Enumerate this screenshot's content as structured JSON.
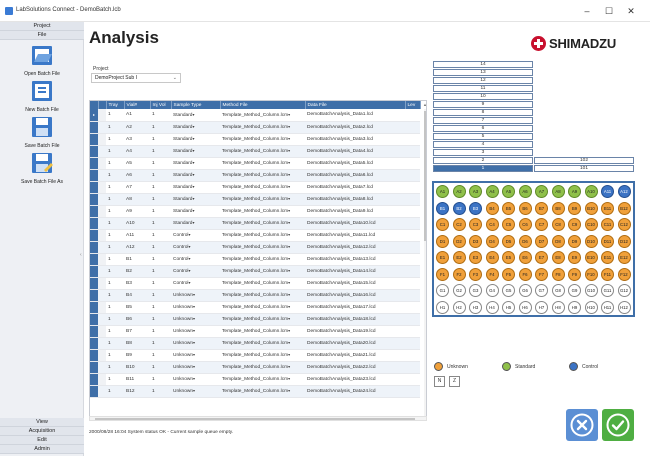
{
  "window": {
    "title": "LabSolutions Connect - DemoBatch.lcb",
    "minimize_glyph": "–",
    "maximize_glyph": "☐",
    "close_glyph": "✕"
  },
  "sidebar": {
    "top_menu": [
      "Project",
      "File"
    ],
    "tools": [
      {
        "label": "Open Batch File",
        "icon": "open-batch-icon"
      },
      {
        "label": "New Batch File",
        "icon": "new-batch-icon"
      },
      {
        "label": "Save Batch File",
        "icon": "save-batch-icon"
      },
      {
        "label": "Save Batch File As",
        "icon": "save-batch-as-icon"
      }
    ],
    "bottom_menu": [
      "View",
      "Acquisition",
      "Edit",
      "Admin"
    ],
    "collapse_glyph": "‹"
  },
  "main": {
    "title": "Analysis",
    "logo_text": "SHIMADZU",
    "project_label": "Project",
    "project_value": "DemoProject Sub I"
  },
  "table": {
    "columns": [
      "Tray",
      "Vial#",
      "Inj Vol",
      "Sample Type",
      "Method File",
      "Data File",
      "Lev"
    ],
    "rows": [
      [
        "1",
        "A1",
        "1",
        "Standard",
        "Template_Method_Column.lcm",
        "DemoBatchAnalysis_Data1.lcd"
      ],
      [
        "1",
        "A2",
        "1",
        "Standard",
        "Template_Method_Column.lcm",
        "DemoBatchAnalysis_Data2.lcd"
      ],
      [
        "1",
        "A3",
        "1",
        "Standard",
        "Template_Method_Column.lcm",
        "DemoBatchAnalysis_Data3.lcd"
      ],
      [
        "1",
        "A4",
        "1",
        "Standard",
        "Template_Method_Column.lcm",
        "DemoBatchAnalysis_Data4.lcd"
      ],
      [
        "1",
        "A5",
        "1",
        "Standard",
        "Template_Method_Column.lcm",
        "DemoBatchAnalysis_Data5.lcd"
      ],
      [
        "1",
        "A6",
        "1",
        "Standard",
        "Template_Method_Column.lcm",
        "DemoBatchAnalysis_Data6.lcd"
      ],
      [
        "1",
        "A7",
        "1",
        "Standard",
        "Template_Method_Column.lcm",
        "DemoBatchAnalysis_Data7.lcd"
      ],
      [
        "1",
        "A8",
        "1",
        "Standard",
        "Template_Method_Column.lcm",
        "DemoBatchAnalysis_Data8.lcd"
      ],
      [
        "1",
        "A9",
        "1",
        "Standard",
        "Template_Method_Column.lcm",
        "DemoBatchAnalysis_Data9.lcd"
      ],
      [
        "1",
        "A10",
        "1",
        "Standard",
        "Template_Method_Column.lcm",
        "DemoBatchAnalysis_Data10.lcd"
      ],
      [
        "1",
        "A11",
        "1",
        "Control",
        "Template_Method_Column.lcm",
        "DemoBatchAnalysis_Data11.lcd"
      ],
      [
        "1",
        "A12",
        "1",
        "Control",
        "Template_Method_Column.lcm",
        "DemoBatchAnalysis_Data12.lcd"
      ],
      [
        "1",
        "B1",
        "1",
        "Control",
        "Template_Method_Column.lcm",
        "DemoBatchAnalysis_Data13.lcd"
      ],
      [
        "1",
        "B2",
        "1",
        "Control",
        "Template_Method_Column.lcm",
        "DemoBatchAnalysis_Data14.lcd"
      ],
      [
        "1",
        "B3",
        "1",
        "Control",
        "Template_Method_Column.lcm",
        "DemoBatchAnalysis_Data15.lcd"
      ],
      [
        "1",
        "B4",
        "1",
        "Unknown",
        "Template_Method_Column.lcm",
        "DemoBatchAnalysis_Data16.lcd"
      ],
      [
        "1",
        "B5",
        "1",
        "Unknown",
        "Template_Method_Column.lcm",
        "DemoBatchAnalysis_Data17.lcd"
      ],
      [
        "1",
        "B6",
        "1",
        "Unknown",
        "Template_Method_Column.lcm",
        "DemoBatchAnalysis_Data18.lcd"
      ],
      [
        "1",
        "B7",
        "1",
        "Unknown",
        "Template_Method_Column.lcm",
        "DemoBatchAnalysis_Data19.lcd"
      ],
      [
        "1",
        "B8",
        "1",
        "Unknown",
        "Template_Method_Column.lcm",
        "DemoBatchAnalysis_Data20.lcd"
      ],
      [
        "1",
        "B9",
        "1",
        "Unknown",
        "Template_Method_Column.lcm",
        "DemoBatchAnalysis_Data21.lcd"
      ],
      [
        "1",
        "B10",
        "1",
        "Unknown",
        "Template_Method_Column.lcm",
        "DemoBatchAnalysis_Data22.lcd"
      ],
      [
        "1",
        "B11",
        "1",
        "Unknown",
        "Template_Method_Column.lcm",
        "DemoBatchAnalysis_Data23.lcd"
      ],
      [
        "1",
        "B12",
        "1",
        "Unknown",
        "Template_Method_Column.lcm",
        "DemoBatchAnalysis_Data24.lcd"
      ]
    ]
  },
  "status": "2000/08/28 16:04 System status OK - Current sample queue empty.",
  "queue": {
    "left": [
      "14",
      "13",
      "12",
      "11",
      "10",
      "9",
      "8",
      "7",
      "6",
      "5",
      "4",
      "3",
      "2",
      "1"
    ],
    "right": [
      "102",
      "101"
    ],
    "selected": "1"
  },
  "plate": {
    "rows": [
      "A",
      "B",
      "C",
      "D",
      "E",
      "F",
      "G",
      "H"
    ],
    "cols": 12,
    "row_types": {
      "A": [
        "standard",
        "standard",
        "standard",
        "standard",
        "standard",
        "standard",
        "standard",
        "standard",
        "standard",
        "standard",
        "control",
        "control"
      ],
      "B": [
        "control",
        "control",
        "control",
        "unknown",
        "unknown",
        "unknown",
        "unknown",
        "unknown",
        "unknown",
        "unknown",
        "unknown",
        "unknown"
      ],
      "C": [
        "unknown",
        "unknown",
        "unknown",
        "unknown",
        "unknown",
        "unknown",
        "unknown",
        "unknown",
        "unknown",
        "unknown",
        "unknown",
        "unknown"
      ],
      "D": [
        "unknown",
        "unknown",
        "unknown",
        "unknown",
        "unknown",
        "unknown",
        "unknown",
        "unknown",
        "unknown",
        "unknown",
        "unknown",
        "unknown"
      ],
      "E": [
        "unknown",
        "unknown",
        "unknown",
        "unknown",
        "unknown",
        "unknown",
        "unknown",
        "unknown",
        "unknown",
        "unknown",
        "unknown",
        "unknown"
      ],
      "F": [
        "unknown",
        "unknown",
        "unknown",
        "unknown",
        "unknown",
        "unknown",
        "unknown",
        "unknown",
        "unknown",
        "unknown",
        "unknown",
        "unknown"
      ],
      "G": [
        "empty",
        "empty",
        "empty",
        "empty",
        "empty",
        "empty",
        "empty",
        "empty",
        "empty",
        "empty",
        "empty",
        "empty"
      ],
      "H": [
        "empty",
        "empty",
        "empty",
        "empty",
        "empty",
        "empty",
        "empty",
        "empty",
        "empty",
        "empty",
        "empty",
        "empty"
      ]
    }
  },
  "legend": [
    {
      "label": "Unknown",
      "type": "unknown"
    },
    {
      "label": "Standard",
      "type": "standard"
    },
    {
      "label": "Control",
      "type": "control"
    }
  ],
  "plate_buttons": [
    "N",
    "Z"
  ],
  "actions": {
    "cancel_glyph": "✕",
    "ok_glyph": "✓"
  },
  "colors": {
    "unknown": "#f0a03a",
    "standard": "#8fc04a",
    "control": "#3b73c4",
    "accent": "#3f6fa8"
  }
}
